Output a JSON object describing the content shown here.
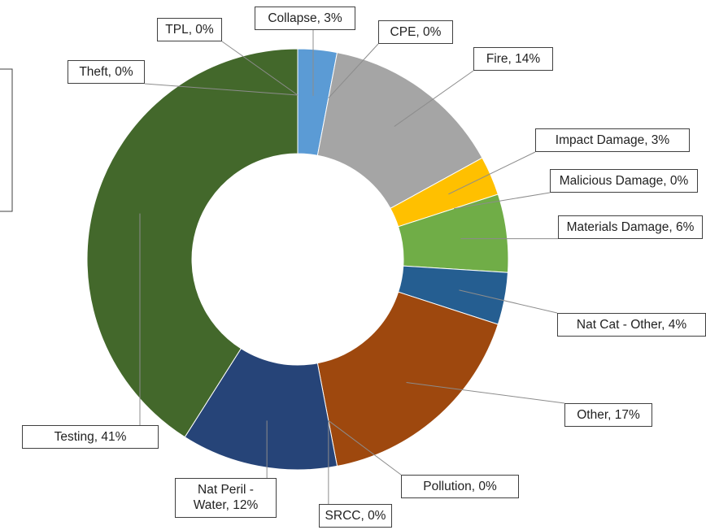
{
  "chart_data": {
    "type": "donut",
    "labels": [
      "Collapse, 3%",
      "CPE, 0%",
      "Fire, 14%",
      "Impact Damage, 3%",
      "Malicious Damage, 0%",
      "Materials Damage, 6%",
      "Nat Cat - Other, 4%",
      "Other, 17%",
      "Pollution, 0%",
      "SRCC, 0%",
      "Nat Peril - Water, 12%",
      "Testing, 41%",
      "Theft, 0%",
      "TPL, 0%"
    ],
    "values": [
      3,
      0,
      14,
      3,
      0,
      6,
      4,
      17,
      0,
      0,
      12,
      41,
      0,
      0
    ],
    "colors": [
      "#5b9bd5",
      "#ed7d31",
      "#a5a5a5",
      "#ffc000",
      "#4472c4",
      "#70ad47",
      "#255e91",
      "#9e480e",
      "#636363",
      "#997300",
      "#264478",
      "#43682b",
      "#698ed0",
      "#f1975a"
    ]
  }
}
